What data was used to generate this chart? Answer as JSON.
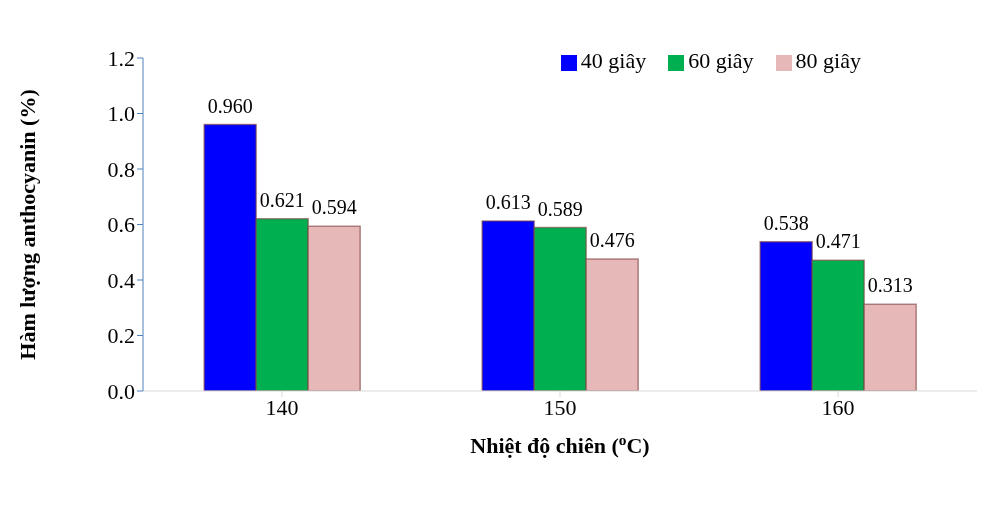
{
  "chart_data": {
    "type": "bar",
    "categories": [
      "140",
      "150",
      "160"
    ],
    "series": [
      {
        "name": "40 giây",
        "color": "#0000ff",
        "values": [
          0.96,
          0.613,
          0.538
        ],
        "value_labels": [
          "0.960",
          "0.613",
          "0.538"
        ]
      },
      {
        "name": "60 giây",
        "color": "#00b050",
        "values": [
          0.621,
          0.589,
          0.471
        ],
        "value_labels": [
          "0.621",
          "0.589",
          "0.471"
        ]
      },
      {
        "name": "80 giây",
        "color": "#e6b8b7",
        "values": [
          0.594,
          0.476,
          0.313
        ],
        "value_labels": [
          "0.594",
          "0.476",
          "0.313"
        ]
      }
    ],
    "xlabel": "Nhiệt độ chiên ($^{o}$C)",
    "ylabel": "Hàm lượng anthocyanin (%)",
    "ylim": [
      0,
      1.2
    ],
    "yticks": [
      {
        "value": 0,
        "label": "0.0"
      },
      0.2,
      0.4,
      0.6,
      0.8,
      {
        "value": 1,
        "label": "1.0"
      },
      1.2
    ],
    "legend": "top right",
    "grid": false
  }
}
